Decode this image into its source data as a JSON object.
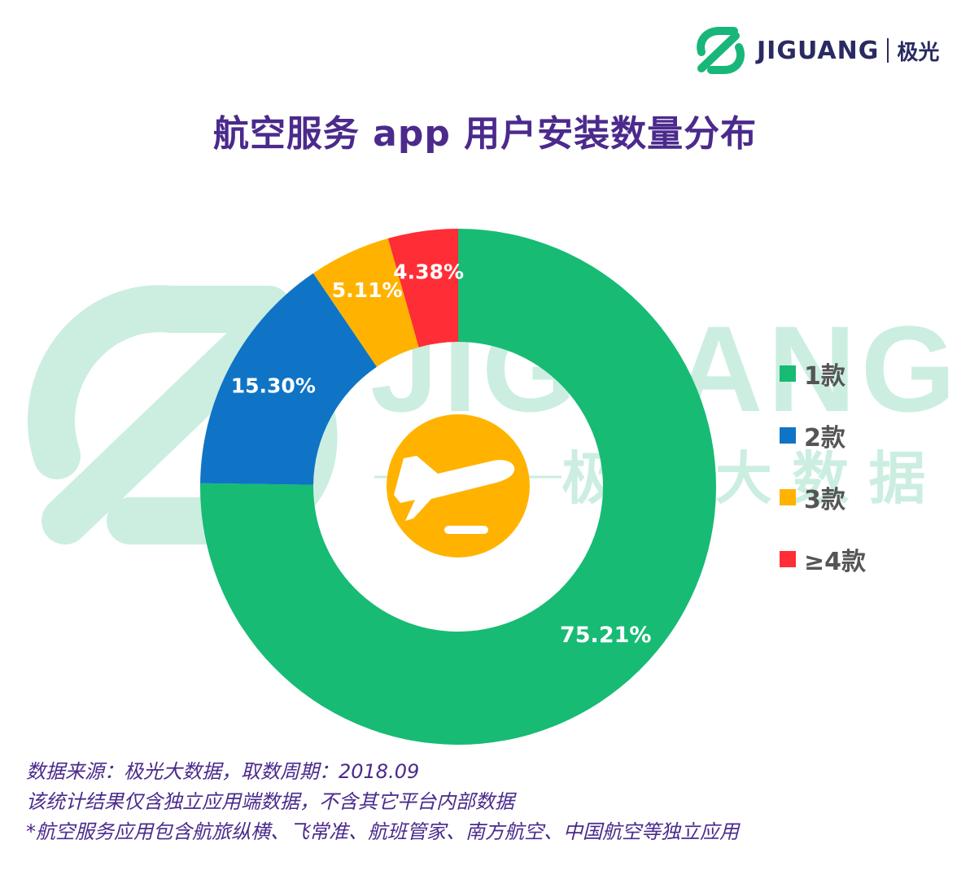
{
  "brand": {
    "name": "JIGUANG",
    "name_cn": "极光",
    "accent": "#19b67a",
    "dark": "#2a2a63"
  },
  "watermark": {
    "text": "JIGUANG",
    "text_cn": "极 光 大 数 据"
  },
  "title": "航空服务 app 用户安装数量分布",
  "chart_data": {
    "type": "pie",
    "variant": "donut",
    "title": "航空服务 app 用户安装数量分布",
    "categories": [
      "1款",
      "2款",
      "3款",
      "≥4款"
    ],
    "values": [
      75.21,
      15.3,
      5.11,
      4.38
    ],
    "labels": [
      "75.21%",
      "15.30%",
      "5.11%",
      "4.38%"
    ],
    "colors": [
      "#17bb74",
      "#0f74c6",
      "#ffb300",
      "#ff2d35"
    ],
    "start_angle": "12 o'clock",
    "direction": "clockwise",
    "legend_position": "right",
    "center_icon": "airplane-takeoff-icon",
    "center_icon_color": "#ffb300"
  },
  "footer": {
    "line1": "数据来源：极光大数据，取数周期：2018.09",
    "line2": "该统计结果仅含独立应用端数据，不含其它平台内部数据",
    "line3": " *航空服务应用包含航旅纵横、飞常准、航班管家、南方航空、中国航空等独立应用"
  }
}
